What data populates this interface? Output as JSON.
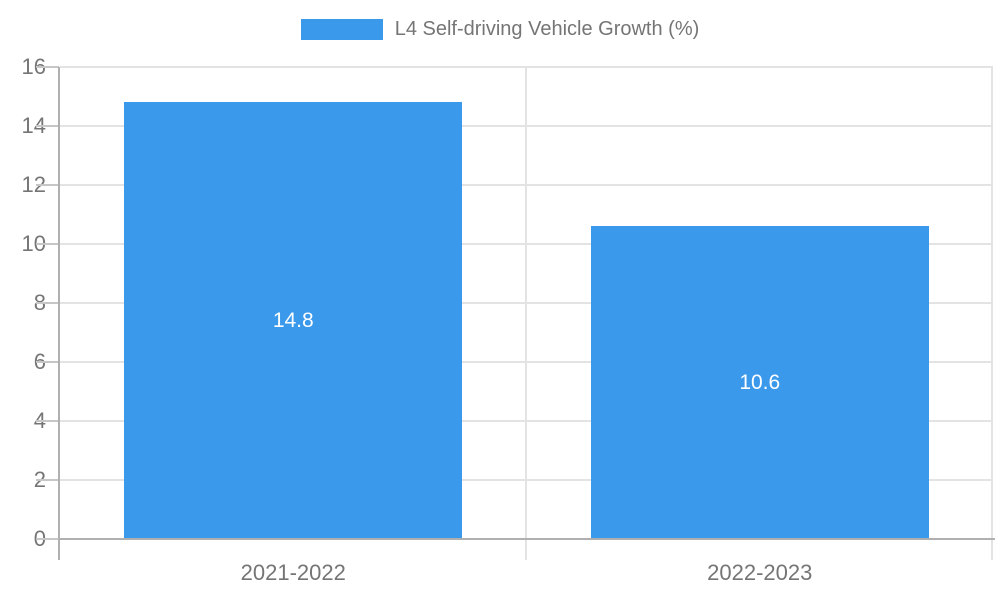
{
  "legend": {
    "label": "L4 Self-driving Vehicle Growth (%)"
  },
  "chart_data": {
    "type": "bar",
    "title": "L4 Self-driving Vehicle Growth (%)",
    "categories": [
      "2021-2022",
      "2022-2023"
    ],
    "values": [
      14.8,
      10.6
    ],
    "value_labels": [
      "14.8",
      "10.6"
    ],
    "xlabel": "",
    "ylabel": "",
    "ylim": [
      0,
      16
    ],
    "yticks": [
      0,
      2,
      4,
      6,
      8,
      10,
      12,
      14,
      16
    ],
    "ytick_labels": [
      "0",
      "2",
      "4",
      "6",
      "8",
      "10",
      "12",
      "14",
      "16"
    ],
    "grid": true,
    "legend_position": "top-center",
    "colors": {
      "bar": "#3b99ec",
      "value_label": "#ffffff",
      "axis_line": "#b0b0b0",
      "gridline": "#e3e3e3",
      "tick": "#c6c6c6",
      "text": "#757575",
      "background": "#ffffff"
    }
  }
}
